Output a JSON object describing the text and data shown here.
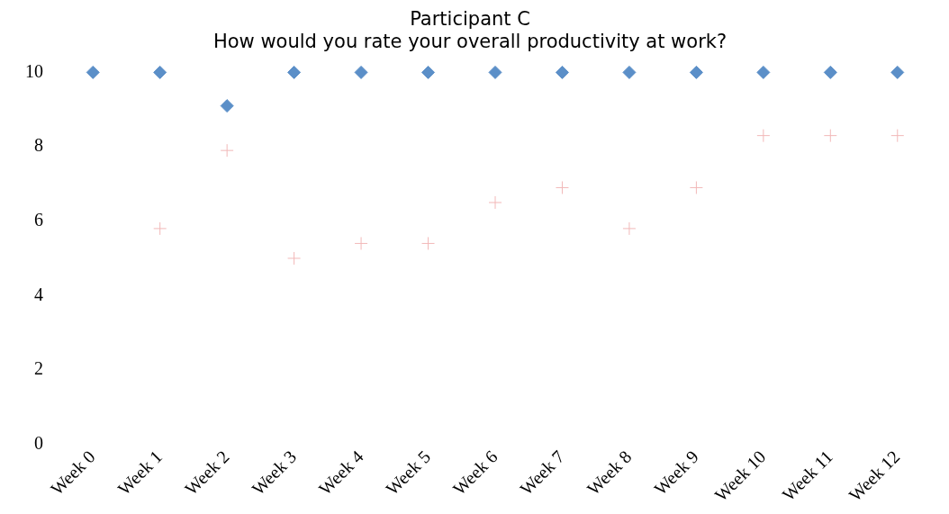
{
  "chart_data": {
    "type": "scatter",
    "title": "Participant C",
    "subtitle": "How would you rate your overall productivity at work?",
    "categories": [
      "Week 0",
      "Week 1",
      "Week 2",
      "Week 3",
      "Week 4",
      "Week 5",
      "Week 6",
      "Week 7",
      "Week 8",
      "Week 9",
      "Week 10",
      "Week 11",
      "Week 12"
    ],
    "series": [
      {
        "color": "#5b8fc8",
        "marker": "diamond",
        "values": [
          10,
          10,
          9.1,
          10,
          10,
          10,
          10,
          10,
          10,
          10,
          10,
          10,
          10
        ]
      },
      {
        "color": "#f2b8b8",
        "marker": "cross",
        "values": [
          null,
          5.8,
          7.9,
          5.0,
          5.4,
          5.4,
          6.5,
          6.9,
          5.8,
          6.9,
          8.3,
          8.3,
          8.3
        ]
      }
    ],
    "ylim": [
      0,
      10
    ],
    "yticks": [
      0,
      2,
      4,
      6,
      8,
      10
    ],
    "grid": false,
    "legend": false
  }
}
